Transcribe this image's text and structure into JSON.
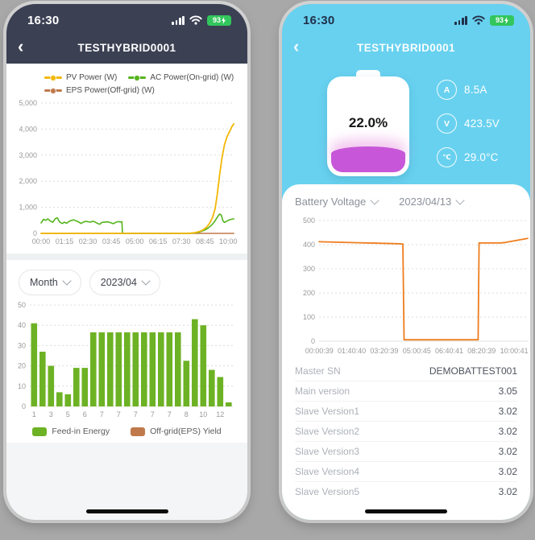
{
  "canvas": {
    "background": "#a8a8a8"
  },
  "left_phone": {
    "status_bar": {
      "time": "16:30",
      "battery_level": "93"
    },
    "nav_bar": {
      "back_icon": "‹",
      "title": "TESTHYBRID0001"
    },
    "controls": {
      "period_selector": "Month",
      "date_selector": "2023/04"
    }
  },
  "right_phone": {
    "status_bar": {
      "time": "16:30",
      "battery_level": "93"
    },
    "nav_bar": {
      "back_icon": "‹",
      "title": "TESTHYBRID0001"
    },
    "battery_card": {
      "soc": "22.0%",
      "fill_color": "#c757d8",
      "stats": [
        {
          "icon": "A",
          "value": "8.5A"
        },
        {
          "icon": "V",
          "value": "423.5V"
        },
        {
          "icon": "℃",
          "value": "29.0°C"
        }
      ]
    },
    "controls": {
      "metric_selector": "Battery Voltage",
      "date_selector": "2023/04/13"
    },
    "info_table": {
      "rows": [
        {
          "label": "Master SN",
          "value": "DEMOBATTEST001"
        },
        {
          "label": "Main version",
          "value": "3.05"
        },
        {
          "label": "Slave Version1",
          "value": "3.02"
        },
        {
          "label": "Slave Version2",
          "value": "3.02"
        },
        {
          "label": "Slave Version3",
          "value": "3.02"
        },
        {
          "label": "Slave Version4",
          "value": "3.02"
        },
        {
          "label": "Slave Version5",
          "value": "3.02"
        }
      ]
    }
  },
  "chart_data": [
    {
      "id": "power",
      "type": "line",
      "title": "Daily PV / AC / EPS power (W)",
      "ylim": [
        0,
        5000
      ],
      "x_max": 620,
      "grid": "dotted",
      "yticks": [
        {
          "value": 0,
          "label": "0"
        },
        {
          "value": 1000,
          "label": "1,000"
        },
        {
          "value": 2000,
          "label": "2,000"
        },
        {
          "value": 3000,
          "label": "3,000"
        },
        {
          "value": 4000,
          "label": "4,000"
        },
        {
          "value": 5000,
          "label": "5,000"
        }
      ],
      "x_ticks": [
        {
          "pos": 0,
          "label": "00:00"
        },
        {
          "pos": 75,
          "label": "01:15"
        },
        {
          "pos": 150,
          "label": "02:30"
        },
        {
          "pos": 225,
          "label": "03:45"
        },
        {
          "pos": 300,
          "label": "05:00"
        },
        {
          "pos": 375,
          "label": "06:15"
        },
        {
          "pos": 450,
          "label": "07:30"
        },
        {
          "pos": 525,
          "label": "08:45"
        },
        {
          "pos": 600,
          "label": "10:00"
        }
      ],
      "legend": [
        {
          "label": "PV Power (W)",
          "color": "#f2b705"
        },
        {
          "label": "AC Power(On-grid) (W)",
          "color": "#54b41d"
        },
        {
          "label": "EPS Power(Off-grid) (W)",
          "color": "#c0794b"
        }
      ],
      "series": [
        {
          "name": "EPS Power(Off-grid) (W)",
          "color": "#c0794b",
          "width": 1.4,
          "points": [
            [
              0,
              0
            ],
            [
              618,
              0
            ]
          ]
        },
        {
          "name": "AC Power(On-grid) (W)",
          "color": "#54b41d",
          "width": 1.6,
          "points": [
            [
              0,
              400
            ],
            [
              8,
              540
            ],
            [
              15,
              500
            ],
            [
              22,
              560
            ],
            [
              30,
              470
            ],
            [
              38,
              430
            ],
            [
              45,
              560
            ],
            [
              52,
              600
            ],
            [
              60,
              430
            ],
            [
              68,
              380
            ],
            [
              75,
              430
            ],
            [
              82,
              390
            ],
            [
              90,
              460
            ],
            [
              98,
              500
            ],
            [
              105,
              520
            ],
            [
              112,
              480
            ],
            [
              120,
              440
            ],
            [
              128,
              380
            ],
            [
              135,
              430
            ],
            [
              142,
              460
            ],
            [
              150,
              450
            ],
            [
              158,
              430
            ],
            [
              165,
              470
            ],
            [
              172,
              440
            ],
            [
              180,
              390
            ],
            [
              188,
              350
            ],
            [
              195,
              420
            ],
            [
              202,
              430
            ],
            [
              210,
              440
            ],
            [
              218,
              430
            ],
            [
              225,
              400
            ],
            [
              232,
              370
            ],
            [
              240,
              430
            ],
            [
              248,
              450
            ],
            [
              255,
              440
            ],
            [
              259,
              445
            ],
            [
              261,
              0
            ],
            [
              350,
              0
            ],
            [
              470,
              0
            ],
            [
              492,
              15
            ],
            [
              505,
              40
            ],
            [
              515,
              80
            ],
            [
              525,
              130
            ],
            [
              535,
              200
            ],
            [
              545,
              300
            ],
            [
              555,
              430
            ],
            [
              565,
              620
            ],
            [
              572,
              740
            ],
            [
              578,
              700
            ],
            [
              583,
              480
            ],
            [
              588,
              420
            ],
            [
              595,
              470
            ],
            [
              602,
              510
            ],
            [
              610,
              540
            ],
            [
              618,
              560
            ]
          ]
        },
        {
          "name": "PV Power (W)",
          "color": "#f2b705",
          "width": 1.8,
          "points": [
            [
              0,
              0
            ],
            [
              460,
              0
            ],
            [
              480,
              10
            ],
            [
              495,
              30
            ],
            [
              510,
              80
            ],
            [
              520,
              140
            ],
            [
              530,
              230
            ],
            [
              540,
              380
            ],
            [
              550,
              620
            ],
            [
              558,
              950
            ],
            [
              565,
              1500
            ],
            [
              572,
              2200
            ],
            [
              580,
              2900
            ],
            [
              588,
              3400
            ],
            [
              596,
              3700
            ],
            [
              604,
              3900
            ],
            [
              612,
              4100
            ],
            [
              618,
              4200
            ]
          ]
        }
      ]
    },
    {
      "id": "energy",
      "type": "bar",
      "title": "Monthly feed-in energy (2023/04)",
      "ylim": [
        0,
        50
      ],
      "bar_color": "#6db224",
      "grid": "dotted",
      "yticks": [
        {
          "value": 0,
          "label": "0"
        },
        {
          "value": 10,
          "label": "10"
        },
        {
          "value": 20,
          "label": "20"
        },
        {
          "value": 30,
          "label": "30"
        },
        {
          "value": 40,
          "label": "40"
        },
        {
          "value": 50,
          "label": "50"
        }
      ],
      "values": [
        41,
        27,
        20,
        7,
        6,
        19,
        19,
        36.5,
        36.5,
        36.5,
        36.5,
        36.5,
        36.5,
        36.5,
        36.5,
        36.5,
        36.5,
        36.5,
        22.5,
        43,
        40,
        18,
        14.5,
        2
      ],
      "x_tick_labels": [
        "1",
        "3",
        "5",
        "6",
        "7",
        "7",
        "7",
        "7",
        "7",
        "8",
        "10",
        "12"
      ],
      "legend": [
        {
          "label": "Feed-in Energy",
          "color": "#6db224"
        },
        {
          "label": "Off-grid(EPS) Yield",
          "color": "#c0794b"
        }
      ]
    },
    {
      "id": "voltage",
      "type": "line",
      "title": "Battery Voltage 2023/04/13 (V)",
      "ylim": [
        0,
        500
      ],
      "x_max": 10.75,
      "grid": "dotted",
      "yticks": [
        {
          "value": 0,
          "label": "0"
        },
        {
          "value": 100,
          "label": "100"
        },
        {
          "value": 200,
          "label": "200"
        },
        {
          "value": 300,
          "label": "300"
        },
        {
          "value": 400,
          "label": "400"
        },
        {
          "value": 500,
          "label": "500"
        }
      ],
      "x_ticks": [
        {
          "pos": 0.011,
          "label": "00:00:39"
        },
        {
          "pos": 1.678,
          "label": "01:40:40"
        },
        {
          "pos": 3.344,
          "label": "03:20:39"
        },
        {
          "pos": 5.013,
          "label": "05:00:45"
        },
        {
          "pos": 6.678,
          "label": "06:40:41"
        },
        {
          "pos": 8.344,
          "label": "08:20:39"
        },
        {
          "pos": 10.012,
          "label": "10:00:41"
        }
      ],
      "legend": [],
      "series": [
        {
          "name": "Battery Voltage",
          "color": "#ee7d1e",
          "width": 1.8,
          "points": [
            [
              0,
              412
            ],
            [
              1,
              410
            ],
            [
              2,
              408
            ],
            [
              3,
              406
            ],
            [
              4,
              404
            ],
            [
              4.3,
              403
            ],
            [
              4.36,
              6
            ],
            [
              6,
              6
            ],
            [
              8.16,
              6
            ],
            [
              8.21,
              407
            ],
            [
              9.3,
              407
            ],
            [
              9.55,
              409
            ],
            [
              9.9,
              414
            ],
            [
              10.3,
              420
            ],
            [
              10.7,
              426
            ]
          ]
        }
      ]
    }
  ]
}
